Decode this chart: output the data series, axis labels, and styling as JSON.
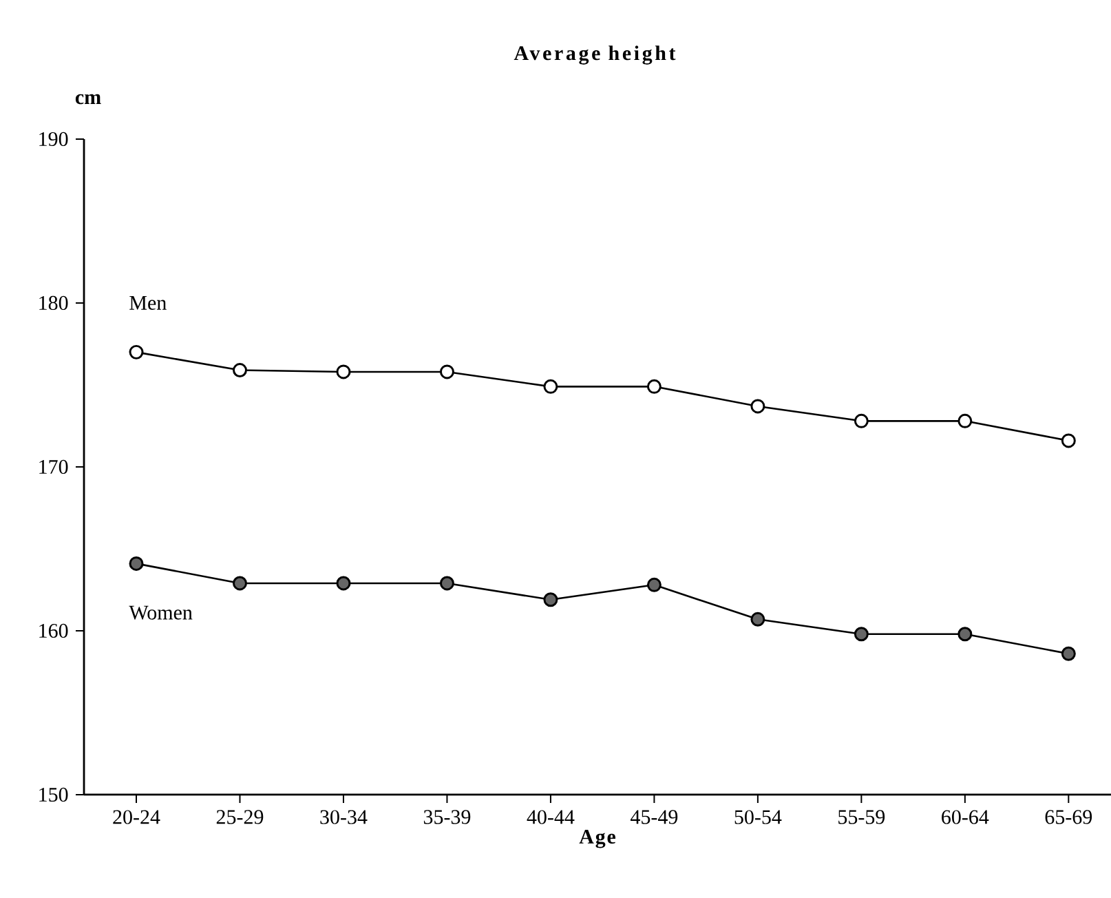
{
  "chart_data": {
    "type": "line",
    "title": "Average height",
    "xlabel": "Age",
    "ylabel": "cm",
    "categories": [
      "20-24",
      "25-29",
      "30-34",
      "35-39",
      "40-44",
      "45-49",
      "50-54",
      "55-59",
      "60-64",
      "65-69"
    ],
    "series": [
      {
        "name": "Men",
        "color": "#ffffff",
        "values": [
          177.0,
          175.9,
          175.8,
          175.8,
          174.9,
          174.9,
          173.7,
          172.8,
          172.8,
          171.6
        ]
      },
      {
        "name": "Women",
        "color": "#666666",
        "values": [
          164.1,
          162.9,
          162.9,
          162.9,
          161.9,
          162.8,
          160.7,
          159.8,
          159.8,
          158.6
        ]
      }
    ],
    "ylim": [
      150,
      190
    ],
    "yticks": [
      150,
      160,
      170,
      180,
      190
    ],
    "marker": "circle",
    "line_style": "solid",
    "grid": false,
    "legend": false
  }
}
